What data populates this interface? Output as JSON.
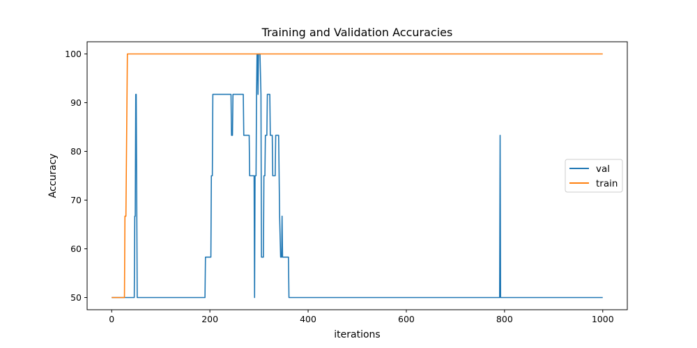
{
  "chart_data": {
    "type": "line",
    "title": "Training and Validation Accuracies",
    "xlabel": "iterations",
    "ylabel": "Accuracy",
    "xlim": [
      -50,
      1050
    ],
    "ylim": [
      47.5,
      102.5
    ],
    "xticks": [
      0,
      200,
      400,
      600,
      800,
      1000
    ],
    "yticks": [
      50,
      60,
      70,
      80,
      90,
      100
    ],
    "grid": false,
    "legend_position": "center-right",
    "series": [
      {
        "name": "val",
        "color": "#1f77b4",
        "points": [
          [
            0,
            50
          ],
          [
            46,
            50
          ],
          [
            47,
            66.7
          ],
          [
            48,
            66.7
          ],
          [
            49,
            91.7
          ],
          [
            50,
            91.7
          ],
          [
            52,
            50
          ],
          [
            190,
            50
          ],
          [
            191,
            58.3
          ],
          [
            202,
            58.3
          ],
          [
            203,
            75
          ],
          [
            205,
            75
          ],
          [
            206,
            91.7
          ],
          [
            243,
            91.7
          ],
          [
            244,
            83.3
          ],
          [
            246,
            83.3
          ],
          [
            247,
            91.7
          ],
          [
            268,
            91.7
          ],
          [
            269,
            83.3
          ],
          [
            280,
            83.3
          ],
          [
            281,
            75
          ],
          [
            288,
            75
          ],
          [
            290,
            75
          ],
          [
            291,
            50
          ],
          [
            292,
            75
          ],
          [
            294,
            75
          ],
          [
            295,
            91.7
          ],
          [
            296,
            100
          ],
          [
            297,
            100
          ],
          [
            298,
            91.7
          ],
          [
            299,
            100
          ],
          [
            302,
            100
          ],
          [
            304,
            91.7
          ],
          [
            305,
            58.3
          ],
          [
            309,
            58.3
          ],
          [
            310,
            75
          ],
          [
            312,
            75
          ],
          [
            313,
            83.3
          ],
          [
            316,
            83.3
          ],
          [
            317,
            91.7
          ],
          [
            322,
            91.7
          ],
          [
            323,
            83.3
          ],
          [
            327,
            83.3
          ],
          [
            328,
            75
          ],
          [
            333,
            75
          ],
          [
            334,
            83.3
          ],
          [
            340,
            83.3
          ],
          [
            342,
            66.7
          ],
          [
            344,
            58.3
          ],
          [
            346,
            58.3
          ],
          [
            347,
            66.7
          ],
          [
            348,
            58.3
          ],
          [
            360,
            58.3
          ],
          [
            361,
            50
          ],
          [
            790,
            50
          ],
          [
            791,
            83.3
          ],
          [
            792,
            50
          ],
          [
            1000,
            50
          ]
        ]
      },
      {
        "name": "train",
        "color": "#ff7f0e",
        "points": [
          [
            0,
            50
          ],
          [
            26,
            50
          ],
          [
            27,
            66.7
          ],
          [
            29,
            66.7
          ],
          [
            32,
            100
          ],
          [
            1000,
            100
          ]
        ]
      }
    ]
  }
}
